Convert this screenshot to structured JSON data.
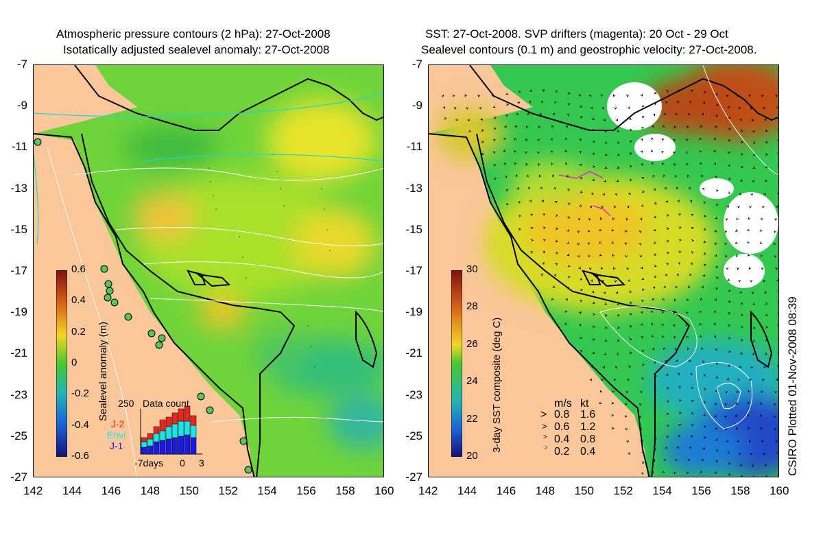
{
  "left_panel": {
    "title_line1": "Atmospheric pressure contours (2 hPa): 27-Oct-2008",
    "title_line2": "Isotatically adjusted sealevel anomaly: 27-Oct-2008",
    "colorbar": {
      "label": "Sealevel anomaly (m)",
      "ticks": [
        "0.6",
        "0.4",
        "0.2",
        "0",
        "-0.2",
        "-0.4",
        "-0.6"
      ]
    },
    "data_count": {
      "title": "Data count",
      "ymax": "250",
      "legend": [
        {
          "name": "J-2",
          "color": "#e8251e"
        },
        {
          "name": "Envi",
          "color": "#19e6e6"
        },
        {
          "name": "J-1",
          "color": "#1a1ae6"
        }
      ],
      "x_ticks": [
        "-7days",
        "0",
        "3"
      ]
    }
  },
  "right_panel": {
    "title_line1": "SST: 27-Oct-2008. SVP drifters (magenta): 20 Oct - 29 Oct",
    "title_line2": "Sealevel contours (0.1 m) and geostrophic velocity: 27-Oct-2008.",
    "colorbar": {
      "label": "3-day SST composite (deg C)",
      "ticks": [
        "30",
        "28",
        "26",
        "24",
        "22",
        "20"
      ]
    },
    "velocity_key": {
      "header_ms": "m/s",
      "header_kt": "kt",
      "rows": [
        {
          "ms": "0.8",
          "kt": "1.6"
        },
        {
          "ms": "0.6",
          "kt": "1.2"
        },
        {
          "ms": "0.4",
          "kt": "0.8"
        },
        {
          "ms": "0.2",
          "kt": "0.4"
        }
      ]
    },
    "credit": "CSIRO Plotted 01-Nov-2008 08:39"
  },
  "axes": {
    "lat_ticks": [
      "-7",
      "-9",
      "-11",
      "-13",
      "-15",
      "-17",
      "-19",
      "-21",
      "-23",
      "-25",
      "-27"
    ],
    "lon_ticks": [
      "142",
      "144",
      "146",
      "148",
      "150",
      "152",
      "154",
      "156",
      "158",
      "160"
    ]
  },
  "colors": {
    "land": "#f9c79a",
    "sla_mid": "#5ad232",
    "coast": "#000000"
  }
}
